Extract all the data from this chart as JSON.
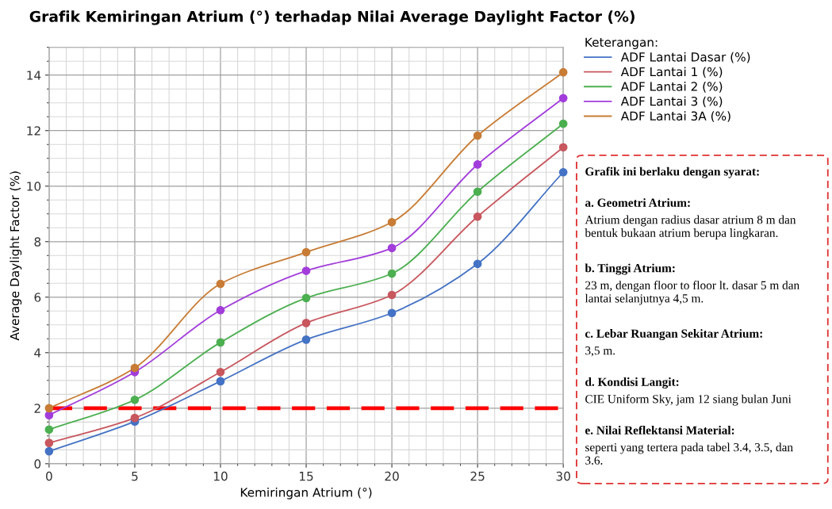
{
  "chart_data": {
    "type": "line",
    "title": "Grafik Kemiringan Atrium (°) terhadap Nilai Average Daylight Factor (%)",
    "xlabel": "Kemiringan Atrium (°)",
    "ylabel": "Average Daylight Factor (%)",
    "legend_title": "Keterangan:",
    "x": [
      0,
      5,
      10,
      15,
      20,
      25,
      30
    ],
    "series": [
      {
        "name": "ADF Lantai Dasar (%)",
        "color": "#4472c4",
        "values": [
          0.45,
          1.52,
          2.97,
          4.47,
          5.43,
          7.2,
          10.5
        ]
      },
      {
        "name": "ADF Lantai 1 (%)",
        "color": "#c8575e",
        "values": [
          0.75,
          1.65,
          3.3,
          5.07,
          6.08,
          8.9,
          11.4
        ]
      },
      {
        "name": "ADF Lantai 2 (%)",
        "color": "#4caf50",
        "values": [
          1.23,
          2.3,
          4.37,
          5.97,
          6.85,
          9.8,
          12.25
        ]
      },
      {
        "name": "ADF Lantai 3 (%)",
        "color": "#a23ddb",
        "values": [
          1.75,
          3.3,
          5.53,
          6.95,
          7.77,
          10.78,
          13.17
        ]
      },
      {
        "name": "ADF Lantai 3A (%)",
        "color": "#c87c35",
        "values": [
          2.0,
          3.45,
          6.48,
          7.62,
          8.7,
          11.82,
          14.1
        ]
      }
    ],
    "xlim": [
      0,
      30
    ],
    "xticks": [
      0,
      5,
      10,
      15,
      20,
      25,
      30
    ],
    "ylim": [
      0,
      15
    ],
    "yticks": [
      0,
      2,
      4,
      6,
      8,
      10,
      12,
      14
    ],
    "ref_lines": [
      {
        "axis": "y",
        "value": 2,
        "color": "#ff0000",
        "line_style": "dashed"
      }
    ],
    "grid": true,
    "legend": "top right",
    "marker": "circle",
    "line_style": "solid",
    "annotations": [
      "Grafik ini berlaku dengan syarat:",
      "a. Geometri Atrium:",
      "Atrium dengan radius dasar atrium 8 m dan\nbentuk bukaan atrium berupa lingkaran.",
      "b. Tinggi Atrium:",
      "23 m, dengan floor to floor lt. dasar 5 m dan\nlantai selanjutnya 4,5 m.",
      "c. Lebar Ruangan Sekitar Atrium:",
      "3,5 m.",
      "d. Kondisi Langit:",
      "CIE Uniform Sky, jam 12 siang bulan Juni",
      "e. Nilai Reflektansi Material:",
      "seperti yang tertera pada tabel 3.4, 3.5, dan\n3.6."
    ]
  }
}
